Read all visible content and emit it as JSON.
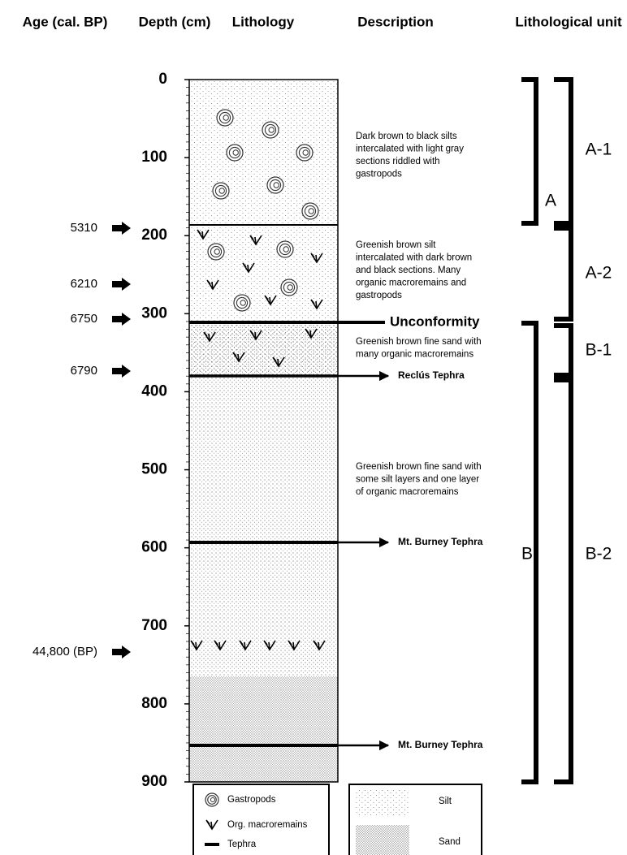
{
  "headers": {
    "age": "Age (cal. BP)",
    "depth": "Depth (cm)",
    "lithology": "Lithology",
    "description": "Description",
    "unit": "Lithological unit"
  },
  "depth_axis": {
    "ticks": [
      0,
      100,
      200,
      300,
      400,
      500,
      600,
      700,
      800,
      900
    ]
  },
  "ages": [
    "5310",
    "6210",
    "6750",
    "6790",
    "44,800 (BP)"
  ],
  "descriptions": [
    [
      "Dark brown to black silts",
      "intercalated with light gray",
      "sections riddled with",
      "gastropods"
    ],
    [
      "Greenish brown silt",
      "intercalated with dark brown",
      "and black sections. Many",
      "organic macroremains and",
      "gastropods"
    ],
    [
      "Greenish brown fine sand with",
      "many organic macroremains"
    ],
    [
      "Greenish brown fine sand with",
      "some silt layers and one layer",
      "of organic macroremains"
    ]
  ],
  "markers": {
    "unconformity": "Unconformity",
    "tephra": [
      "Reclús Tephra",
      "Mt. Burney Tephra",
      "Mt. Burney Tephra"
    ]
  },
  "units": {
    "major": [
      "A",
      "B"
    ],
    "minor": [
      "A-1",
      "A-2",
      "B-1",
      "B-2"
    ]
  },
  "legend": {
    "symbols": [
      "Gastropods",
      "Org. macroremains",
      "Tephra"
    ],
    "patterns": [
      "Silt",
      "Sand"
    ]
  }
}
